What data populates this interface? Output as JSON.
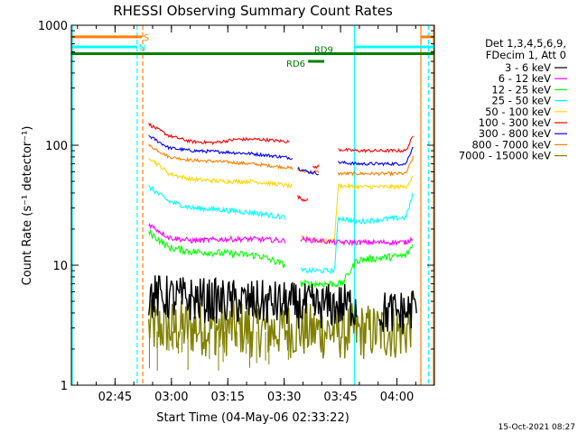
{
  "chart_data": {
    "type": "line",
    "title": "RHESSI Observing Summary Count Rates",
    "xlabel": "Start Time (04-May-06 02:33:22)",
    "ylabel": "Count Rate (s⁻¹ detector⁻¹)",
    "yscale": "log",
    "ylim": [
      1,
      1000
    ],
    "xlim_minutes": [
      0,
      96.6
    ],
    "x_ticks": [
      {
        "label": "02:45",
        "minute": 11.63
      },
      {
        "label": "03:00",
        "minute": 26.63
      },
      {
        "label": "03:15",
        "minute": 41.63
      },
      {
        "label": "03:30",
        "minute": 56.63
      },
      {
        "label": "03:45",
        "minute": 71.63
      },
      {
        "label": "04:00",
        "minute": 86.63
      }
    ],
    "y_ticks": [
      {
        "label": "1",
        "value": 1
      },
      {
        "label": "10",
        "value": 10
      },
      {
        "label": "100",
        "value": 100
      },
      {
        "label": "1000",
        "value": 1000
      }
    ],
    "legend_header": [
      "Det 1,3,4,5,6,9,",
      "FDecim 1, Att 0"
    ],
    "series": [
      {
        "name": "3 - 6 keV",
        "color": "#000000",
        "segments": [
          [
            [
              20.6,
              5.5
            ],
            [
              40,
              5.0
            ],
            [
              56,
              4.8
            ],
            [
              60,
              4.6
            ],
            [
              65,
              4.5
            ],
            [
              72,
              4.6
            ],
            [
              76,
              4.6
            ]
          ],
          [
            [
              82,
              4.0
            ],
            [
              86,
              4.0
            ],
            [
              90,
              4.1
            ],
            [
              92,
              5.0
            ]
          ]
        ],
        "noise": 0.2
      },
      {
        "name": "6 - 12 keV",
        "color": "#ff00ff",
        "segments": [
          [
            [
              20.6,
              22
            ],
            [
              26,
              17
            ],
            [
              32,
              16
            ],
            [
              42,
              16.5
            ],
            [
              49,
              16.5
            ],
            [
              57,
              16
            ]
          ],
          [
            [
              61,
              16.5
            ],
            [
              66,
              16
            ],
            [
              70,
              15.5
            ],
            [
              76,
              15.5
            ],
            [
              82,
              15.5
            ],
            [
              89,
              15.5
            ],
            [
              91,
              17
            ]
          ]
        ],
        "noise": 0.05
      },
      {
        "name": "12 - 25 keV",
        "color": "#00ff00",
        "segments": [
          [
            [
              20.6,
              19
            ],
            [
              26,
              14
            ],
            [
              32,
              13
            ],
            [
              42,
              12.5
            ],
            [
              50,
              12
            ],
            [
              57,
              10
            ]
          ],
          [
            [
              61,
              7
            ],
            [
              68,
              7
            ],
            [
              72,
              7
            ],
            [
              76,
              11
            ],
            [
              82,
              11.5
            ],
            [
              89,
              12
            ],
            [
              91,
              15
            ]
          ]
        ],
        "noise": 0.07
      },
      {
        "name": "25 - 50 keV",
        "color": "#00ffff",
        "segments": [
          [
            [
              20.6,
              45
            ],
            [
              26,
              34
            ],
            [
              32,
              30
            ],
            [
              40,
              29
            ],
            [
              50,
              27
            ],
            [
              57,
              25
            ]
          ],
          [
            [
              61,
              9
            ],
            [
              66,
              9
            ],
            [
              70,
              9
            ],
            [
              71,
              25
            ],
            [
              76,
              23
            ],
            [
              82,
              24
            ],
            [
              89,
              25
            ],
            [
              91,
              40
            ]
          ]
        ],
        "noise": 0.05
      },
      {
        "name": "50 - 100 keV",
        "color": "#ffd700",
        "segments": [
          [
            [
              20.6,
              80
            ],
            [
              26,
              58
            ],
            [
              32,
              52
            ],
            [
              40,
              50
            ],
            [
              48,
              50
            ],
            [
              56,
              47
            ],
            [
              59,
              45
            ]
          ],
          [
            [
              61,
              17
            ],
            [
              66,
              16
            ],
            [
              68,
              16
            ],
            [
              70,
              16
            ],
            [
              71,
              46
            ],
            [
              76,
              45
            ],
            [
              82,
              45
            ],
            [
              89,
              45
            ],
            [
              91,
              55
            ]
          ]
        ],
        "noise": 0.04
      },
      {
        "name": "100 - 300 keV",
        "color": "#ff0000",
        "segments": [
          [
            [
              20.6,
              150
            ],
            [
              26,
              120
            ],
            [
              32,
              107
            ],
            [
              38,
              105
            ],
            [
              44,
              112
            ],
            [
              50,
              112
            ],
            [
              58,
              107
            ]
          ],
          [
            [
              60,
              38
            ],
            [
              61,
              36
            ],
            [
              62,
              35
            ],
            [
              63,
              36
            ]
          ],
          [
            [
              64,
              65
            ],
            [
              66,
              67
            ]
          ],
          [
            [
              71,
              92
            ],
            [
              76,
              90
            ],
            [
              82,
              90
            ],
            [
              89,
              90
            ],
            [
              91,
              120
            ]
          ]
        ],
        "noise": 0.03
      },
      {
        "name": "300 - 800 keV",
        "color": "#0000ff",
        "segments": [
          [
            [
              20.6,
              120
            ],
            [
              26,
              95
            ],
            [
              32,
              90
            ],
            [
              40,
              88
            ],
            [
              48,
              85
            ],
            [
              56,
              80
            ],
            [
              59,
              78
            ]
          ],
          [
            [
              60,
              65
            ],
            [
              63,
              60
            ],
            [
              66,
              58
            ]
          ],
          [
            [
              71,
              72
            ],
            [
              76,
              70
            ],
            [
              82,
              70
            ],
            [
              89,
              70
            ],
            [
              91,
              100
            ]
          ]
        ],
        "noise": 0.03
      },
      {
        "name": "800 - 7000 keV",
        "color": "#ff8000",
        "segments": [
          [
            [
              20.6,
              100
            ],
            [
              26,
              80
            ],
            [
              32,
              75
            ],
            [
              40,
              73
            ],
            [
              48,
              70
            ],
            [
              56,
              66
            ],
            [
              59,
              64
            ]
          ],
          [
            [
              60,
              62
            ],
            [
              63,
              60
            ],
            [
              66,
              60
            ]
          ],
          [
            [
              71,
              58
            ],
            [
              76,
              58
            ],
            [
              82,
              58
            ],
            [
              89,
              58
            ],
            [
              91,
              80
            ]
          ]
        ],
        "noise": 0.03
      },
      {
        "name": "7000 - 15000 keV",
        "color": "#808000",
        "segments": [
          [
            [
              20.6,
              3.0
            ],
            [
              40,
              3.0
            ],
            [
              56,
              2.9
            ],
            [
              60,
              2.9
            ],
            [
              65,
              2.8
            ],
            [
              72,
              2.8
            ],
            [
              76,
              2.8
            ],
            [
              82,
              2.8
            ],
            [
              89,
              2.8
            ],
            [
              91,
              3.8
            ]
          ]
        ],
        "noise": 0.25
      }
    ],
    "annotations": {
      "flag_bars": [
        {
          "label": "S",
          "color": "#ff8000",
          "minute_start": -4,
          "minute_end": 18.8,
          "value": 800,
          "label_minute": 19.2
        },
        {
          "label": "N",
          "color": "#00ffff",
          "minute_start": -4,
          "minute_end": 17.5,
          "value": 660,
          "label_minute": 18.0
        },
        {
          "label": "",
          "color": "#ff8000",
          "minute_start": 93,
          "minute_end": 96.6,
          "value": 800,
          "label_minute": 0
        },
        {
          "label": "",
          "color": "#00ffff",
          "minute_start": 75.3,
          "minute_end": 96.6,
          "value": 660,
          "label_minute": 0
        },
        {
          "label": "RD9",
          "color": "#008000",
          "minute_start": -4,
          "minute_end": 96.6,
          "value": 580,
          "label_minute": 64.6
        },
        {
          "label": "RD6",
          "color": "#008000",
          "minute_start": 63.0,
          "minute_end": 67.3,
          "value": 500,
          "label_minute": 57.2
        }
      ],
      "vlines": [
        {
          "minute": -4,
          "color": "#00ffff",
          "style": "solid"
        },
        {
          "minute": 17.5,
          "color": "#00ffff",
          "style": "dashed"
        },
        {
          "minute": 19.0,
          "color": "#ff8000",
          "style": "dashed"
        },
        {
          "minute": 75.3,
          "color": "#00ffff",
          "style": "solid"
        },
        {
          "minute": 93.0,
          "color": "#ff8000",
          "style": "solid"
        },
        {
          "minute": 95.0,
          "color": "#00ffff",
          "style": "dashed"
        },
        {
          "minute": 96.6,
          "color": "#ff8000",
          "style": "solid"
        }
      ]
    },
    "timestamp": "15-Oct-2021 08:27"
  }
}
